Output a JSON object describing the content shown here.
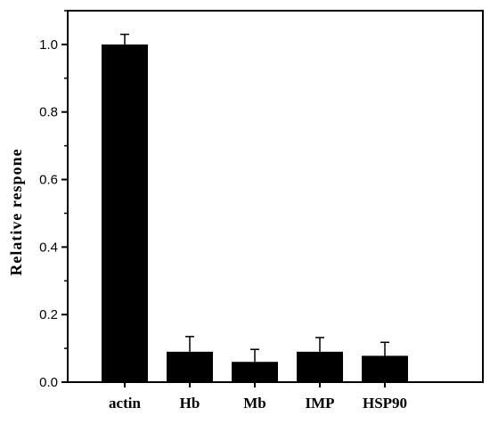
{
  "chart_data": {
    "type": "bar",
    "title": "",
    "xlabel": "",
    "ylabel": "Relative respone",
    "categories": [
      "actin",
      "Hb",
      "Mb",
      "IMP",
      "HSP90"
    ],
    "values": [
      1.0,
      0.09,
      0.06,
      0.09,
      0.078
    ],
    "errors": [
      0.03,
      0.045,
      0.037,
      0.042,
      0.04
    ],
    "ylim": [
      0,
      1.1
    ],
    "yticks": [
      0.0,
      0.2,
      0.4,
      0.6,
      0.8,
      1.0
    ],
    "ytick_labels": [
      "0.0",
      "0.2",
      "0.4",
      "0.6",
      "0.8",
      "1.0"
    ],
    "grid": false,
    "bar_color": "#000000"
  }
}
